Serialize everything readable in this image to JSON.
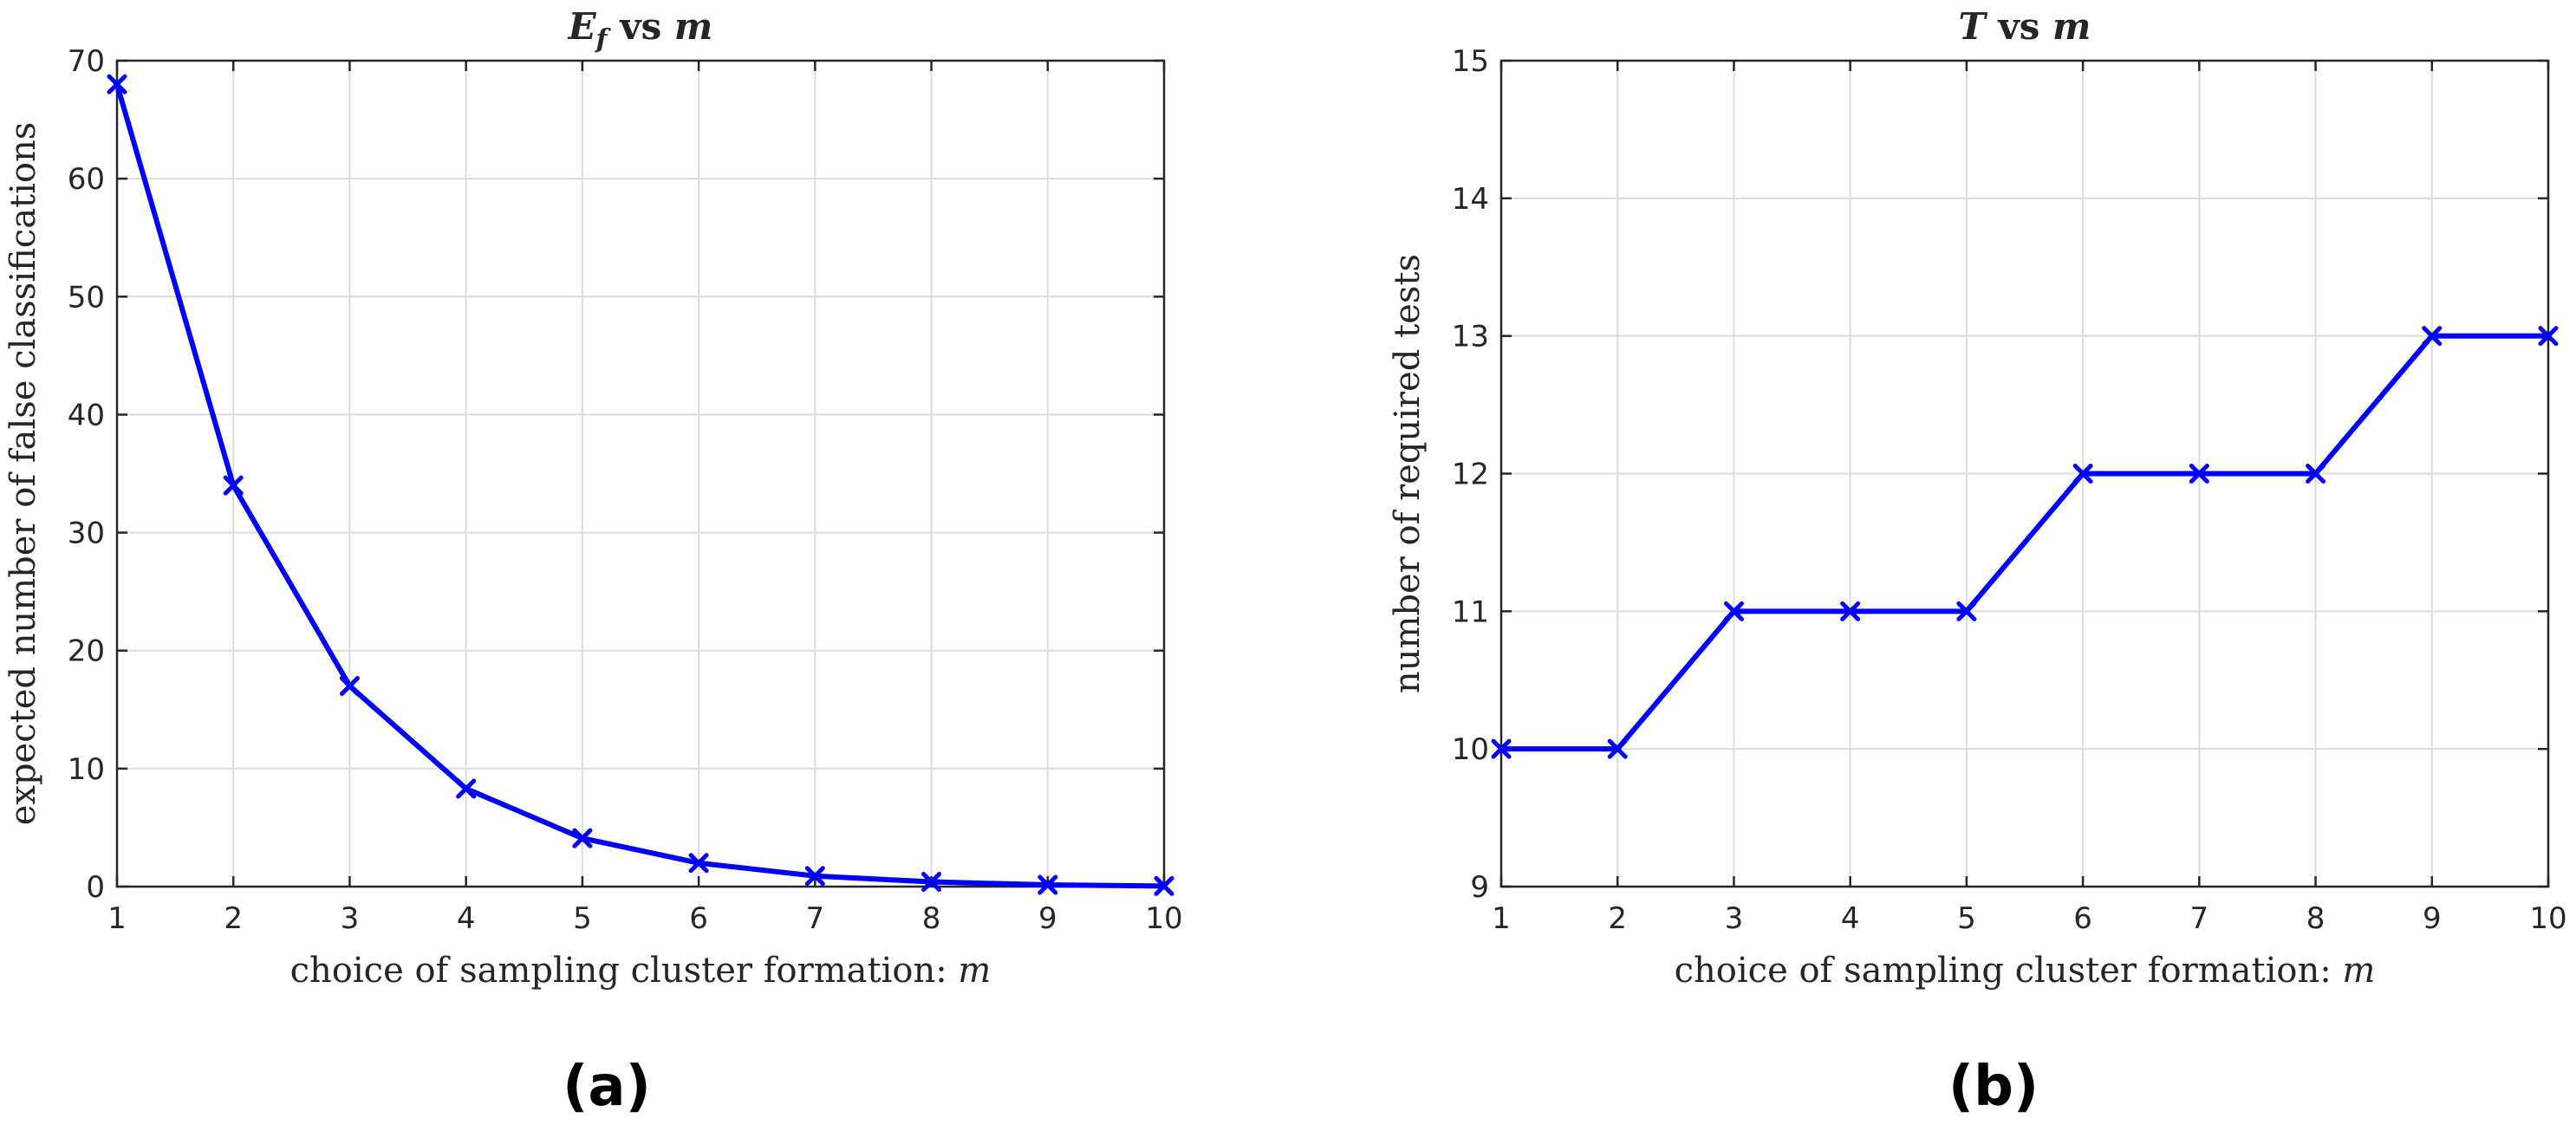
{
  "line_color": "#0000ff",
  "chart_data": [
    {
      "type": "line",
      "title": "E_f vs m",
      "title_parts": {
        "var": "E",
        "sub": "f",
        "rest": " vs ",
        "var2": "m"
      },
      "xlabel": "choice of sampling cluster formation: m",
      "xlabel_parts": {
        "text": "choice of sampling cluster formation: ",
        "var": "m"
      },
      "ylabel": "expected number of false classifications",
      "xlim": [
        1,
        10
      ],
      "ylim": [
        0,
        70
      ],
      "xticks": [
        "1",
        "2",
        "3",
        "4",
        "5",
        "6",
        "7",
        "8",
        "9",
        "10"
      ],
      "yticks": [
        "0",
        "10",
        "20",
        "30",
        "40",
        "50",
        "60",
        "70"
      ],
      "grid": true,
      "marker": "x",
      "x": [
        1,
        2,
        3,
        4,
        5,
        6,
        7,
        8,
        9,
        10
      ],
      "y": [
        68,
        34,
        17,
        8.3,
        4.1,
        2.0,
        0.9,
        0.4,
        0.15,
        0.05
      ],
      "panel_label": "(a)"
    },
    {
      "type": "line",
      "title": "T vs m",
      "title_parts": {
        "var": "T",
        "sub": "",
        "rest": " vs ",
        "var2": "m"
      },
      "xlabel": "choice of sampling cluster formation: m",
      "xlabel_parts": {
        "text": "choice of sampling cluster formation: ",
        "var": "m"
      },
      "ylabel": "number of required tests",
      "xlim": [
        1,
        10
      ],
      "ylim": [
        9,
        15
      ],
      "xticks": [
        "1",
        "2",
        "3",
        "4",
        "5",
        "6",
        "7",
        "8",
        "9",
        "10"
      ],
      "yticks": [
        "9",
        "10",
        "11",
        "12",
        "13",
        "14",
        "15"
      ],
      "grid": true,
      "marker": "x",
      "x": [
        1,
        2,
        3,
        4,
        5,
        6,
        7,
        8,
        9,
        10
      ],
      "y": [
        10,
        10,
        11,
        11,
        11,
        12,
        12,
        12,
        13,
        13
      ],
      "panel_label": "(b)"
    }
  ]
}
